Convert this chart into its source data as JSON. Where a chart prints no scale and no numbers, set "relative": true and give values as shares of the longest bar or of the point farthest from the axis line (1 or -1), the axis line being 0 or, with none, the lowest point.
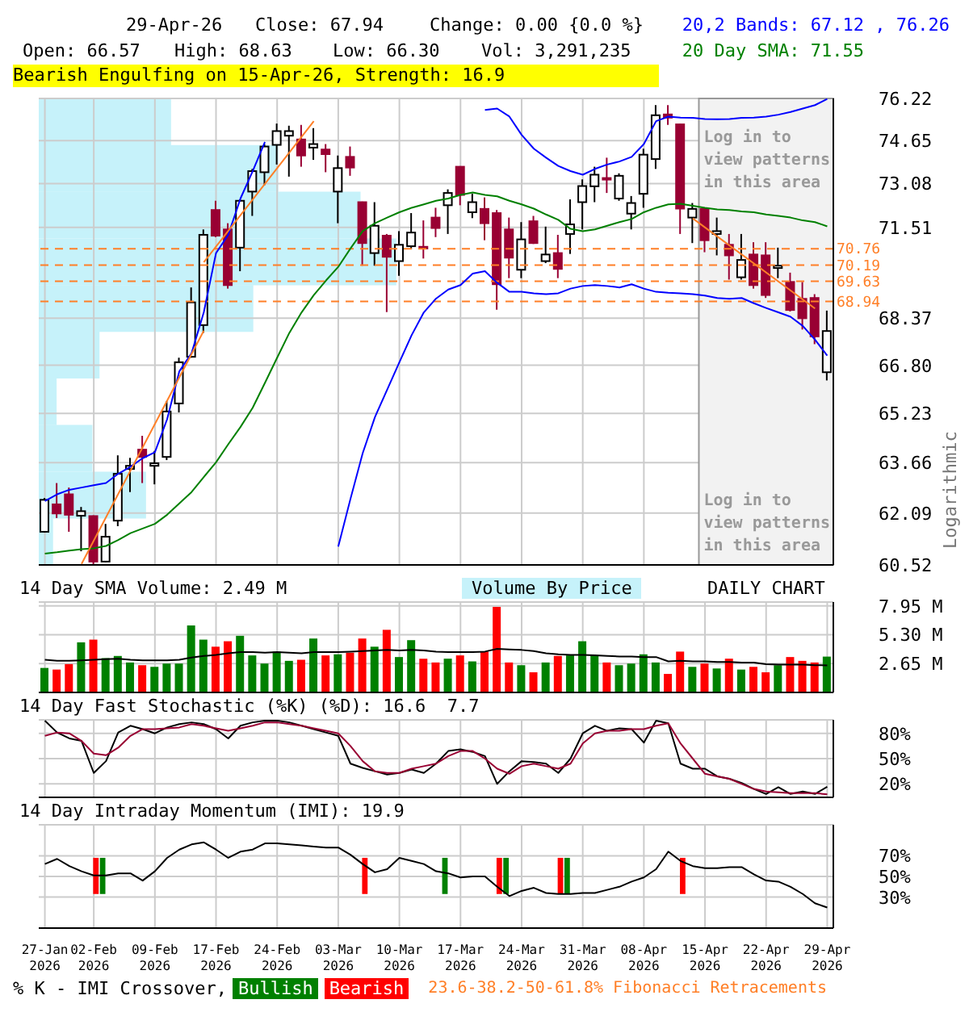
{
  "chart_data": [
    {
      "type": "candlestick",
      "categories": [
        "27-Jan 2026",
        null,
        null,
        null,
        "02-Feb 2026",
        null,
        null,
        null,
        null,
        "09-Feb 2026",
        null,
        null,
        null,
        null,
        "17-Feb 2026",
        null,
        null,
        null,
        null,
        "24-Feb 2026",
        null,
        null,
        null,
        null,
        "03-Mar 2026",
        null,
        null,
        null,
        null,
        "10-Mar 2026",
        null,
        null,
        null,
        null,
        "17-Mar 2026",
        null,
        null,
        null,
        null,
        "24-Mar 2026",
        null,
        null,
        null,
        null,
        "31-Mar 2026",
        null,
        null,
        null,
        null,
        "08-Apr 2026",
        null,
        null,
        null,
        null,
        "15-Apr 2026",
        null,
        null,
        null,
        null,
        "22-Apr 2026",
        null,
        null,
        null,
        null,
        "29-Apr 2026"
      ],
      "ohlc": [
        [
          61.52,
          62.56,
          61.5,
          62.5
        ],
        [
          62.36,
          63.02,
          61.94,
          62.08
        ],
        [
          62.67,
          62.88,
          61.52,
          62.04
        ],
        [
          62.01,
          62.28,
          60.93,
          62.15
        ],
        [
          62.0,
          62.02,
          60.45,
          60.62
        ],
        [
          60.62,
          61.76,
          60.6,
          61.37
        ],
        [
          61.86,
          63.89,
          61.69,
          63.31
        ],
        [
          63.46,
          63.81,
          62.74,
          63.56
        ],
        [
          64.07,
          64.51,
          63.02,
          63.84
        ],
        [
          63.56,
          64.03,
          62.98,
          63.64
        ],
        [
          63.84,
          65.63,
          63.74,
          65.29
        ],
        [
          65.55,
          67.05,
          65.26,
          66.9
        ],
        [
          67.08,
          69.42,
          67.05,
          68.91
        ],
        [
          68.14,
          71.44,
          67.88,
          71.25
        ],
        [
          72.13,
          72.46,
          71.17,
          71.22
        ],
        [
          71.44,
          71.66,
          69.38,
          69.5
        ],
        [
          70.8,
          72.51,
          69.98,
          72.46
        ],
        [
          72.79,
          73.61,
          71.92,
          73.53
        ],
        [
          73.49,
          74.52,
          73.02,
          74.43
        ],
        [
          74.49,
          75.28,
          73.77,
          75.0
        ],
        [
          74.83,
          75.2,
          73.33,
          75.0
        ],
        [
          74.69,
          75.23,
          73.69,
          74.1
        ],
        [
          74.39,
          75.11,
          73.94,
          74.52
        ],
        [
          74.32,
          74.52,
          73.49,
          74.15
        ],
        [
          72.79,
          74.1,
          71.66,
          73.64
        ],
        [
          74.05,
          74.43,
          73.36,
          73.66
        ],
        [
          72.41,
          72.43,
          70.17,
          70.96
        ],
        [
          70.61,
          72.41,
          70.17,
          71.57
        ],
        [
          71.22,
          71.28,
          68.58,
          70.48
        ],
        [
          70.33,
          71.38,
          69.82,
          70.9
        ],
        [
          70.85,
          72.02,
          70.74,
          71.33
        ],
        [
          70.83,
          71.76,
          70.42,
          70.77
        ],
        [
          71.86,
          72.21,
          71.17,
          71.49
        ],
        [
          72.3,
          72.87,
          71.28,
          72.74
        ],
        [
          73.69,
          73.71,
          72.3,
          72.67
        ],
        [
          72.05,
          72.71,
          71.84,
          72.41
        ],
        [
          72.17,
          72.58,
          71.06,
          71.66
        ],
        [
          72.02,
          72.13,
          68.66,
          69.53
        ],
        [
          71.44,
          71.86,
          69.74,
          70.45
        ],
        [
          70.03,
          71.7,
          69.74,
          71.09
        ],
        [
          71.73,
          71.92,
          70.93,
          70.96
        ],
        [
          70.33,
          71.54,
          70.26,
          70.56
        ],
        [
          70.61,
          71.25,
          69.74,
          70.06
        ],
        [
          71.28,
          72.51,
          70.58,
          71.62
        ],
        [
          72.41,
          73.23,
          71.44,
          72.99
        ],
        [
          72.98,
          73.69,
          72.41,
          73.4
        ],
        [
          73.28,
          74.02,
          72.74,
          73.23
        ],
        [
          72.54,
          73.45,
          72.46,
          73.36
        ],
        [
          72.0,
          72.63,
          71.44,
          72.38
        ],
        [
          72.71,
          74.35,
          72.21,
          74.13
        ],
        [
          73.97,
          75.97,
          73.61,
          75.59
        ],
        [
          75.62,
          75.97,
          75.23,
          75.5
        ],
        [
          75.25,
          75.27,
          71.28,
          72.18
        ],
        [
          71.86,
          72.38,
          70.96,
          72.17
        ],
        [
          72.17,
          72.19,
          70.64,
          71.06
        ],
        [
          71.28,
          71.86,
          70.53,
          71.38
        ],
        [
          70.9,
          71.28,
          69.69,
          70.53
        ],
        [
          69.77,
          71.28,
          69.69,
          70.37
        ],
        [
          70.56,
          70.99,
          69.38,
          69.5
        ],
        [
          70.53,
          70.99,
          69.06,
          69.16
        ],
        [
          70.09,
          70.8,
          69.74,
          70.17
        ],
        [
          69.61,
          69.93,
          68.6,
          68.65
        ],
        [
          69.03,
          69.61,
          67.99,
          68.37
        ],
        [
          69.06,
          69.19,
          67.5,
          67.76
        ],
        [
          66.57,
          68.63,
          66.3,
          67.94
        ]
      ],
      "series": [
        {
          "type": "line",
          "name": "20,2 Bands: 67.12 , 76.26",
          "color": "#0000ff",
          "values": [
            62.46,
            62.67,
            62.81,
            62.88,
            62.95,
            63.02,
            63.31,
            63.53,
            63.8,
            63.99,
            65.04,
            66.6,
            67.2,
            68.57,
            70.61,
            71.25,
            72.54,
            73.53,
            74.6,
            null,
            null,
            null,
            null,
            null,
            null,
            null,
            null,
            null,
            null,
            null,
            null,
            null,
            null,
            null,
            null,
            null,
            75.79,
            75.84,
            75.54,
            74.86,
            74.35,
            74.02,
            73.72,
            73.53,
            73.4,
            73.61,
            73.77,
            73.88,
            74.05,
            74.52,
            75.37,
            75.54,
            75.5,
            75.49,
            75.45,
            75.44,
            75.45,
            75.49,
            75.5,
            75.54,
            75.61,
            75.71,
            75.84,
            75.97,
            76.2
          ]
        },
        {
          "type": "line",
          "color": "#0000ff",
          "values": [
            null,
            null,
            null,
            null,
            null,
            null,
            null,
            null,
            null,
            null,
            null,
            null,
            null,
            null,
            null,
            null,
            null,
            null,
            null,
            null,
            null,
            null,
            null,
            null,
            61.07,
            62.53,
            63.96,
            65.11,
            66.0,
            66.9,
            67.8,
            68.57,
            69.04,
            69.35,
            69.5,
            69.9,
            69.98,
            69.58,
            69.27,
            69.27,
            69.22,
            69.19,
            69.22,
            69.38,
            69.47,
            69.5,
            69.47,
            69.42,
            69.53,
            69.38,
            69.27,
            69.24,
            69.22,
            69.19,
            69.14,
            69.06,
            69.03,
            69.06,
            68.88,
            68.72,
            68.57,
            68.42,
            68.11,
            67.65,
            67.12
          ]
        },
        {
          "type": "line",
          "name": "20 Day SMA: 71.55",
          "color": "#008000",
          "values": [
            60.86,
            60.9,
            60.95,
            60.99,
            61.02,
            61.09,
            61.27,
            61.48,
            61.62,
            61.76,
            62.04,
            62.39,
            62.74,
            63.21,
            63.67,
            64.24,
            64.79,
            65.41,
            66.22,
            67.05,
            67.88,
            68.57,
            69.16,
            69.66,
            70.13,
            70.77,
            71.38,
            71.66,
            71.86,
            72.05,
            72.21,
            72.33,
            72.46,
            72.54,
            72.67,
            72.76,
            72.67,
            72.62,
            72.46,
            72.33,
            72.18,
            71.97,
            71.78,
            71.46,
            71.38,
            71.44,
            71.57,
            71.7,
            71.81,
            72.05,
            72.21,
            72.33,
            72.35,
            72.28,
            72.21,
            72.15,
            72.13,
            72.08,
            72.05,
            71.97,
            71.92,
            71.86,
            71.76,
            71.7,
            71.55
          ]
        },
        {
          "type": "line",
          "color": "#ff7f27",
          "values": [
            null,
            null,
            null,
            60.55,
            null,
            null,
            null,
            null,
            null,
            null,
            null,
            null,
            null,
            67.95,
            null,
            null,
            null,
            null,
            null,
            null,
            null,
            null,
            null,
            null,
            null,
            null,
            null,
            null,
            null,
            null,
            null,
            null,
            null,
            null,
            null,
            null,
            null,
            null,
            null,
            null,
            null,
            null,
            null,
            null,
            null,
            null,
            null,
            null,
            null,
            null,
            null,
            null,
            null,
            null,
            null,
            null,
            null,
            null,
            null,
            null,
            null,
            null,
            null,
            null,
            null
          ]
        },
        {
          "type": "line",
          "color": "#ff7f27",
          "values": [
            null,
            null,
            null,
            null,
            null,
            null,
            null,
            null,
            null,
            null,
            null,
            null,
            null,
            70.29,
            null,
            null,
            null,
            null,
            null,
            null,
            null,
            null,
            75.37,
            null,
            null,
            null,
            null,
            null,
            null,
            null,
            null,
            null,
            null,
            null,
            null,
            null,
            null,
            null,
            null,
            null,
            null,
            null,
            null,
            null,
            null,
            null,
            null,
            null,
            null,
            null,
            null,
            null,
            null,
            null,
            null,
            null,
            null,
            null,
            null,
            null,
            null,
            null,
            null,
            null,
            null
          ]
        },
        {
          "type": "line",
          "color": "#ff7f27",
          "values": [
            null,
            null,
            null,
            null,
            null,
            null,
            null,
            null,
            null,
            null,
            null,
            null,
            null,
            null,
            null,
            null,
            null,
            null,
            null,
            null,
            null,
            null,
            null,
            null,
            null,
            null,
            null,
            null,
            null,
            null,
            null,
            null,
            null,
            null,
            null,
            null,
            null,
            null,
            null,
            null,
            null,
            null,
            null,
            null,
            null,
            null,
            null,
            null,
            null,
            null,
            null,
            null,
            null,
            71.83,
            null,
            null,
            null,
            null,
            null,
            null,
            null,
            null,
            null,
            68.7,
            null
          ]
        }
      ],
      "log": "y",
      "ylim": [
        60.52,
        76.22
      ],
      "yticks": [
        60.52,
        62.09,
        63.66,
        65.23,
        {
          "value": 66.8,
          "label": "66.80"
        },
        68.37,
        71.51,
        73.08,
        74.65,
        76.22
      ],
      "grid": true,
      "ylabel": "Logarithmic",
      "tick_labels": "y",
      "legend": "top right",
      "ref_lines": [
        {
          "axis": "y",
          "value": 70.76,
          "label": "70.76",
          "color": "#ff7f27",
          "line_style": "dashed"
        },
        {
          "axis": "y",
          "value": 70.19,
          "label": "70.19",
          "color": "#ff7f27",
          "line_style": "dashed"
        },
        {
          "axis": "y",
          "value": 69.63,
          "label": "69.63",
          "color": "#ff7f27",
          "line_style": "dashed"
        },
        {
          "axis": "y",
          "value": 68.94,
          "label": "68.94",
          "color": "#ff7f27",
          "line_style": "dashed"
        }
      ],
      "bands": [
        {
          "axis": "x",
          "from": "15-Apr 2026",
          "to": "29-Apr 2026",
          "color": "#f2f2f2"
        }
      ],
      "annotations": [
        "29-Apr-26",
        "Close: 67.94",
        "Change: 0.00 {0.0 %}",
        "Open: 66.57",
        "High: 68.63",
        "Low: 66.30",
        "Vol: 3,291,235",
        "Bearish Engulfing on 15-Apr-26, Strength: 16.9",
        "Log in to view patterns in this area",
        "Log in to view patterns in this area",
        "23.6-38.2-50-61.8% Fibonacci Retracements"
      ]
    },
    {
      "type": "bar",
      "orientation": "horizontal",
      "relative": true,
      "color": "#c6f2fa",
      "categories": [
        null,
        null,
        null,
        null,
        null,
        null,
        null,
        null,
        null,
        null
      ],
      "values": [
        0.37,
        0.67,
        0.9,
        1,
        0.6,
        0.17,
        0.05,
        0.15,
        0.3,
        0.04
      ]
    },
    {
      "type": "bar",
      "title": "14 Day SMA Volume: 2.49 M",
      "categories": [
        "27-Jan 2026",
        null,
        null,
        null,
        "02-Feb 2026",
        null,
        null,
        null,
        null,
        "09-Feb 2026",
        null,
        null,
        null,
        null,
        "17-Feb 2026",
        null,
        null,
        null,
        null,
        "24-Feb 2026",
        null,
        null,
        null,
        null,
        "03-Mar 2026",
        null,
        null,
        null,
        null,
        "10-Mar 2026",
        null,
        null,
        null,
        null,
        "17-Mar 2026",
        null,
        null,
        null,
        null,
        "24-Mar 2026",
        null,
        null,
        null,
        null,
        "31-Mar 2026",
        null,
        null,
        null,
        null,
        "08-Apr 2026",
        null,
        null,
        null,
        null,
        "15-Apr 2026",
        null,
        null,
        null,
        null,
        "22-Apr 2026",
        null,
        null,
        null,
        null,
        "29-Apr 2026"
      ],
      "series": [
        {
          "values": [
            2.25,
            2.1,
            2.6,
            4.6,
            4.85,
            3.15,
            3.35,
            2.75,
            2.5,
            2.35,
            2.65,
            2.65,
            6.15,
            4.85,
            4.2,
            4.7,
            5.2,
            3.4,
            2.65,
            3.75,
            2.9,
            3.0,
            4.95,
            3.4,
            3.5,
            3.65,
            4.95,
            4.2,
            5.75,
            3.25,
            4.8,
            3.1,
            2.75,
            3.1,
            3.4,
            2.85,
            3.75,
            7.85,
            2.75,
            2.5,
            1.85,
            2.75,
            3.35,
            3.4,
            4.7,
            3.4,
            2.75,
            2.5,
            2.65,
            3.5,
            2.75,
            1.7,
            3.75,
            2.35,
            2.65,
            2.2,
            3.1,
            2.1,
            2.35,
            1.85,
            2.5,
            3.25,
            2.9,
            2.75,
            3.29
          ],
          "colors": [
            "#008000",
            "#ff0000",
            "#ff0000",
            "#008000",
            "#ff0000",
            "#008000",
            "#008000",
            "#008000",
            "#ff0000",
            "#008000",
            "#008000",
            "#008000",
            "#008000",
            "#008000",
            "#ff0000",
            "#ff0000",
            "#008000",
            "#008000",
            "#008000",
            "#008000",
            "#008000",
            "#ff0000",
            "#008000",
            "#ff0000",
            "#008000",
            "#ff0000",
            "#ff0000",
            "#008000",
            "#ff0000",
            "#008000",
            "#008000",
            "#ff0000",
            "#ff0000",
            "#008000",
            "#ff0000",
            "#008000",
            "#ff0000",
            "#ff0000",
            "#ff0000",
            "#008000",
            "#ff0000",
            "#008000",
            "#ff0000",
            "#008000",
            "#008000",
            "#008000",
            "#ff0000",
            "#008000",
            "#008000",
            "#008000",
            "#008000",
            "#ff0000",
            "#ff0000",
            "#008000",
            "#ff0000",
            "#008000",
            "#ff0000",
            "#008000",
            "#ff0000",
            "#ff0000",
            "#008000",
            "#ff0000",
            "#ff0000",
            "#ff0000",
            "#008000"
          ]
        },
        {
          "type": "line",
          "color": "#000000",
          "values": [
            3.0,
            2.9,
            2.9,
            2.95,
            3.0,
            3.05,
            3.1,
            3.0,
            2.95,
            2.95,
            2.95,
            3.0,
            3.2,
            3.35,
            3.45,
            3.6,
            3.7,
            3.7,
            3.65,
            3.7,
            3.65,
            3.6,
            3.7,
            3.7,
            3.7,
            3.75,
            3.8,
            3.85,
            3.9,
            3.85,
            3.9,
            3.85,
            3.75,
            3.7,
            3.7,
            3.7,
            3.75,
            4.0,
            3.95,
            3.9,
            3.8,
            3.6,
            3.5,
            3.45,
            3.45,
            3.4,
            3.35,
            3.3,
            3.3,
            3.25,
            3.25,
            2.85,
            2.9,
            2.85,
            2.85,
            2.8,
            2.8,
            2.75,
            2.75,
            2.6,
            2.55,
            2.55,
            2.55,
            2.5,
            2.49
          ]
        }
      ],
      "ylim": [
        0,
        8.3
      ],
      "yticks": [
        {
          "value": 2.65,
          "label": "2.65 M"
        },
        {
          "value": 5.3,
          "label": "5.30 M"
        },
        {
          "value": 7.95,
          "label": "7.95 M"
        }
      ],
      "grid": true,
      "tick_labels": "y",
      "annotations": [
        "Volume By Price",
        "DAILY CHART"
      ]
    },
    {
      "type": "line",
      "title": "14 Day Fast Stochastic (%K) (%D): 16.6  7.7",
      "categories": [
        "27-Jan 2026",
        null,
        null,
        null,
        "02-Feb 2026",
        null,
        null,
        null,
        null,
        "09-Feb 2026",
        null,
        null,
        null,
        null,
        "17-Feb 2026",
        null,
        null,
        null,
        null,
        "24-Feb 2026",
        null,
        null,
        null,
        null,
        "03-Mar 2026",
        null,
        null,
        null,
        null,
        "10-Mar 2026",
        null,
        null,
        null,
        null,
        "17-Mar 2026",
        null,
        null,
        null,
        null,
        "24-Mar 2026",
        null,
        null,
        null,
        null,
        "31-Mar 2026",
        null,
        null,
        null,
        null,
        "08-Apr 2026",
        null,
        null,
        null,
        null,
        "15-Apr 2026",
        null,
        null,
        null,
        null,
        "22-Apr 2026",
        null,
        null,
        null,
        null,
        "29-Apr 2026"
      ],
      "series": [
        {
          "color": "#000000",
          "values": [
            95,
            81,
            74,
            71,
            33,
            47,
            81,
            89,
            85,
            80,
            87,
            91,
            93,
            91,
            85,
            74,
            89,
            93,
            95,
            95,
            93,
            89,
            85,
            81,
            77,
            44,
            39,
            35,
            31,
            33,
            37,
            33,
            44,
            59,
            61,
            58,
            53,
            20,
            35,
            47,
            46,
            44,
            33,
            50,
            80,
            89,
            83,
            86,
            85,
            69,
            95,
            92,
            44,
            38,
            38,
            29,
            26,
            21,
            14,
            8,
            16,
            8,
            11,
            8,
            16.6
          ]
        },
        {
          "color": "#990033",
          "values": [
            77,
            81,
            80,
            71,
            56,
            54,
            63,
            77,
            85,
            85,
            86,
            87,
            91,
            89,
            86,
            83,
            86,
            89,
            93,
            93,
            91,
            89,
            86,
            83,
            80,
            65,
            47,
            35,
            33,
            33,
            38,
            41,
            44,
            53,
            59,
            59,
            50,
            38,
            32,
            41,
            44,
            41,
            38,
            44,
            68,
            80,
            83,
            83,
            85,
            85,
            89,
            92,
            68,
            50,
            32,
            29,
            26,
            20,
            14,
            11,
            10,
            9,
            9,
            9,
            7.7
          ]
        }
      ],
      "ylim": [
        4,
        96
      ],
      "yticks": [
        {
          "value": 20,
          "label": "20%"
        },
        {
          "value": 50,
          "label": "50%"
        },
        {
          "value": 80,
          "label": "80%"
        }
      ],
      "grid": true,
      "tick_labels": "y"
    },
    {
      "type": "line",
      "title": "14 Day Intraday Momentum (IMI): 19.9",
      "categories": [
        "27-Jan 2026",
        null,
        null,
        null,
        "02-Feb 2026",
        null,
        null,
        null,
        null,
        "09-Feb 2026",
        null,
        null,
        null,
        null,
        "17-Feb 2026",
        null,
        null,
        null,
        null,
        "24-Feb 2026",
        null,
        null,
        null,
        null,
        "03-Mar 2026",
        null,
        null,
        null,
        null,
        "10-Mar 2026",
        null,
        null,
        null,
        null,
        "17-Mar 2026",
        null,
        null,
        null,
        null,
        "24-Mar 2026",
        null,
        null,
        null,
        null,
        "31-Mar 2026",
        null,
        null,
        null,
        null,
        "08-Apr 2026",
        null,
        null,
        null,
        null,
        "15-Apr 2026",
        null,
        null,
        null,
        null,
        "22-Apr 2026",
        null,
        null,
        null,
        null,
        "29-Apr 2026"
      ],
      "series": [
        {
          "color": "#000000",
          "values": [
            62,
            67,
            60,
            55,
            51,
            51,
            53,
            53,
            46,
            55,
            68,
            76,
            81,
            83,
            76,
            68,
            74,
            76,
            82,
            82,
            81,
            80,
            79,
            78,
            78,
            71,
            62,
            54,
            57,
            68,
            65,
            62,
            55,
            53,
            49,
            50,
            50,
            40,
            31,
            36,
            39,
            34,
            33,
            33,
            34,
            34,
            37,
            40,
            45,
            49,
            57,
            74,
            65,
            60,
            58,
            58,
            59,
            59,
            52,
            46,
            45,
            40,
            33,
            24,
            19.9
          ]
        },
        {
          "type": "bar",
          "name": "Bullish",
          "color": "#008000",
          "values": [
            null,
            null,
            null,
            null,
            null,
            35,
            null,
            null,
            null,
            null,
            null,
            null,
            null,
            null,
            null,
            null,
            null,
            null,
            null,
            null,
            null,
            null,
            null,
            null,
            null,
            null,
            null,
            null,
            null,
            null,
            null,
            null,
            null,
            35,
            null,
            null,
            null,
            null,
            35,
            null,
            null,
            null,
            null,
            35,
            null,
            null,
            null,
            null,
            null,
            null,
            null,
            null,
            null,
            null,
            null,
            null,
            null,
            null,
            null,
            null,
            null,
            null,
            null,
            null,
            null
          ],
          "base": [
            null,
            null,
            null,
            null,
            null,
            33,
            null,
            null,
            null,
            null,
            null,
            null,
            null,
            null,
            null,
            null,
            null,
            null,
            null,
            null,
            null,
            null,
            null,
            null,
            null,
            null,
            null,
            null,
            null,
            null,
            null,
            null,
            null,
            33,
            null,
            null,
            null,
            null,
            33,
            null,
            null,
            null,
            null,
            33,
            null,
            null,
            null,
            null,
            null,
            null,
            null,
            null,
            null,
            null,
            null,
            null,
            null,
            null,
            null,
            null,
            null,
            null,
            null,
            null,
            null
          ]
        },
        {
          "type": "bar",
          "name": "Bearish",
          "color": "#ff0000",
          "values": [
            null,
            null,
            null,
            null,
            35,
            null,
            null,
            null,
            null,
            null,
            null,
            null,
            null,
            null,
            null,
            null,
            null,
            null,
            null,
            null,
            null,
            null,
            null,
            null,
            null,
            null,
            35,
            null,
            null,
            null,
            null,
            null,
            null,
            null,
            null,
            null,
            null,
            35,
            null,
            null,
            null,
            null,
            35,
            null,
            null,
            null,
            null,
            null,
            null,
            null,
            null,
            null,
            35,
            null,
            null,
            null,
            null,
            null,
            null,
            null,
            null,
            null,
            null,
            null,
            null
          ],
          "base": [
            null,
            null,
            null,
            null,
            33,
            null,
            null,
            null,
            null,
            null,
            null,
            null,
            null,
            null,
            null,
            null,
            null,
            null,
            null,
            null,
            null,
            null,
            null,
            null,
            null,
            null,
            33,
            null,
            null,
            null,
            null,
            null,
            null,
            null,
            null,
            null,
            null,
            33,
            null,
            null,
            null,
            null,
            33,
            null,
            null,
            null,
            null,
            null,
            null,
            null,
            null,
            null,
            33,
            null,
            null,
            null,
            null,
            null,
            null,
            null,
            null,
            null,
            null,
            null,
            null
          ]
        }
      ],
      "ylim": [
        0,
        100
      ],
      "yticks": [
        {
          "value": 30,
          "label": "30%"
        },
        {
          "value": 50,
          "label": "50%"
        },
        {
          "value": 70,
          "label": "70%"
        }
      ],
      "grid": true,
      "legend": "bottom",
      "legend_title": "% K - IMI Crossover,"
    }
  ]
}
